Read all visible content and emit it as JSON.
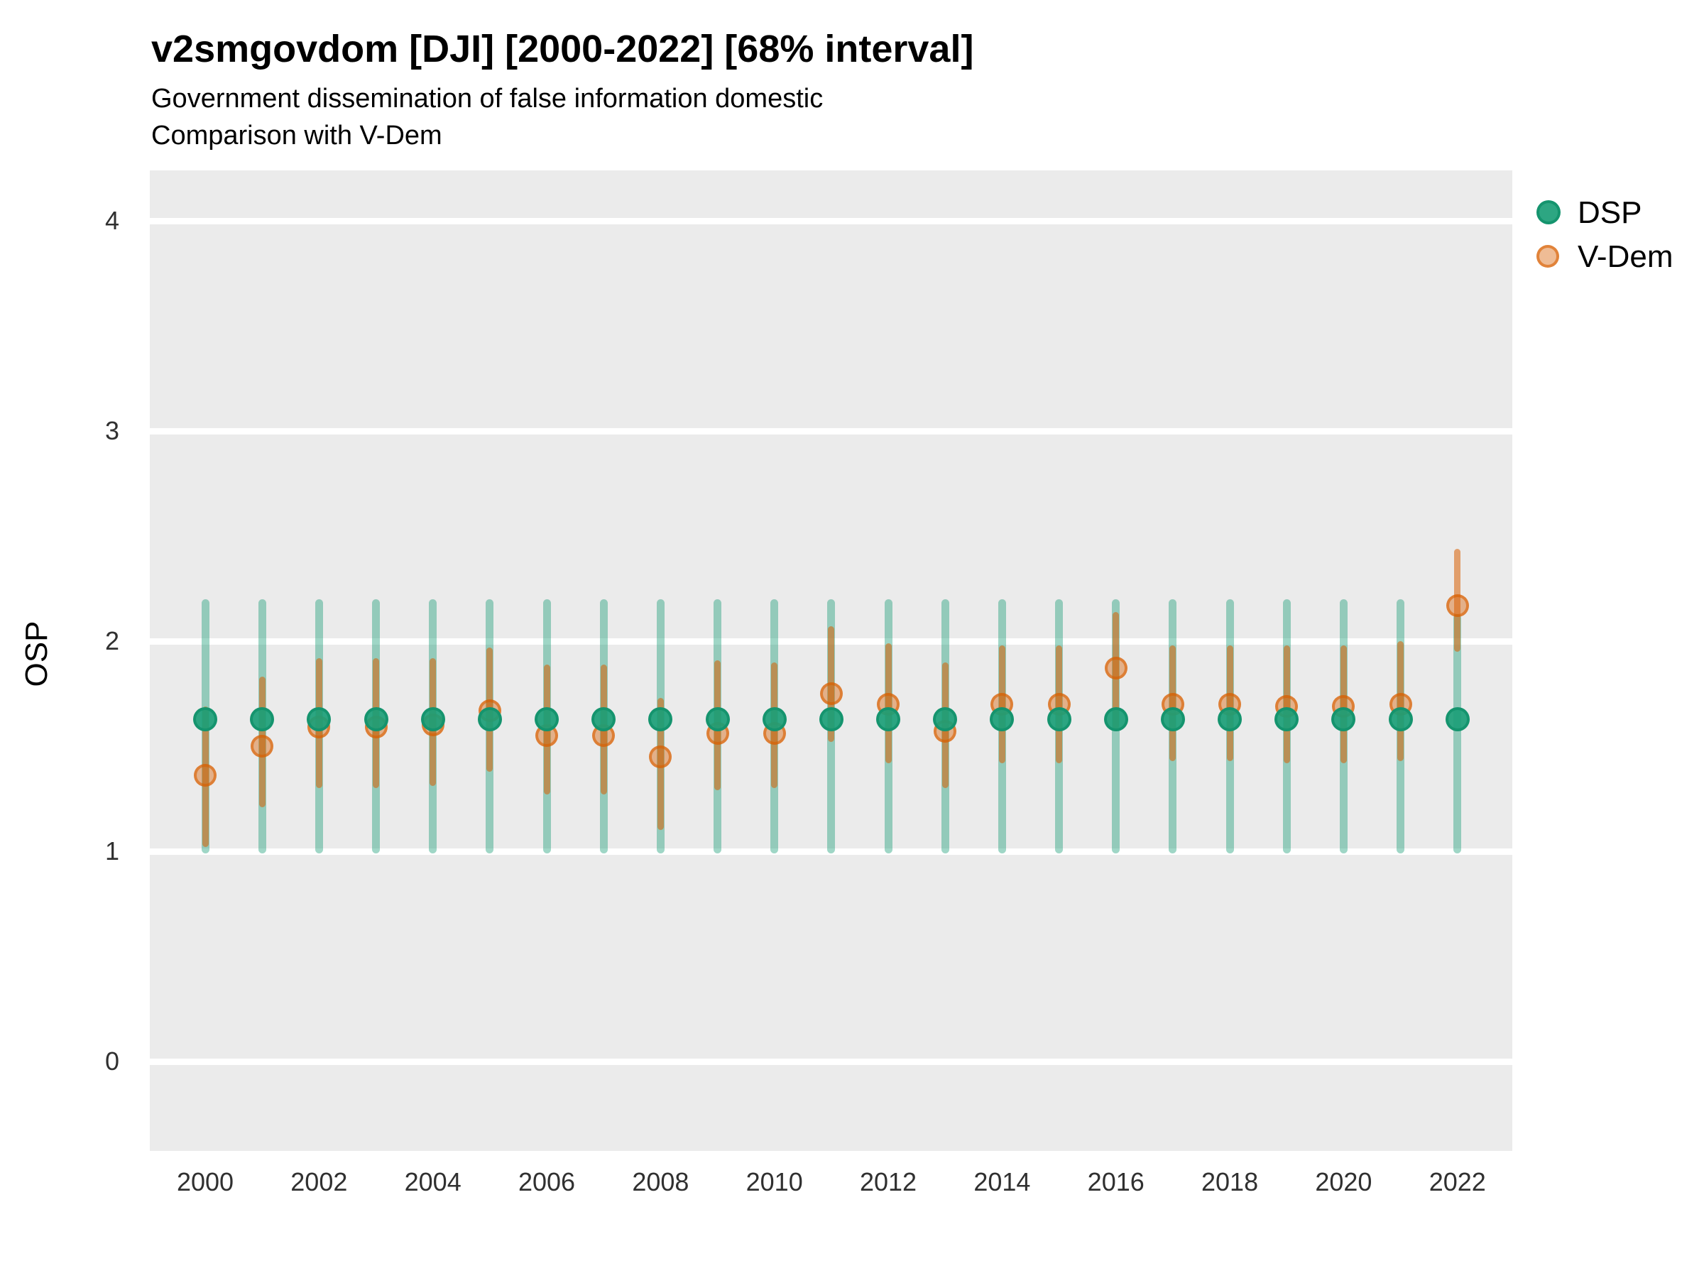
{
  "header": {
    "title": "v2smgovdom [DJI] [2000-2022] [68% interval]",
    "subtitle_line1": "Government dissemination of false information domestic",
    "subtitle_line2": "Comparison with V-Dem"
  },
  "y_axis": {
    "title": "OSP",
    "tick_labels": [
      "4",
      "3",
      "2",
      "1",
      "0"
    ],
    "tick_values": [
      4,
      3,
      2,
      1,
      0
    ]
  },
  "x_axis": {
    "tick_labels": [
      "2000",
      "2002",
      "2004",
      "2006",
      "2008",
      "2010",
      "2012",
      "2014",
      "2016",
      "2018",
      "2020",
      "2022"
    ],
    "tick_values": [
      2000,
      2002,
      2004,
      2006,
      2008,
      2010,
      2012,
      2014,
      2016,
      2018,
      2020,
      2022
    ]
  },
  "legend": {
    "items": [
      {
        "label": "DSP",
        "color": "#1b9e77"
      },
      {
        "label": "V-Dem",
        "color": "#d95f02"
      }
    ]
  },
  "colors": {
    "panel_background": "#EBEBEB",
    "gridline": "#FFFFFF",
    "dsp_green": "#1b9e77",
    "vdem_orange": "#d95f02",
    "page_background": "#FFFFFF",
    "text": "#000000"
  },
  "chart_data": {
    "type": "scatter",
    "title": "v2smgovdom [DJI] [2000-2022] [68% interval]",
    "subtitle": "Government dissemination of false information domestic — Comparison with V-Dem",
    "xlabel": "",
    "ylabel": "OSP",
    "ylim": [
      -0.42,
      4.24
    ],
    "xlim": [
      1999,
      2023
    ],
    "grid": true,
    "legend_position": "right",
    "interval_label": "68% interval",
    "x": [
      2000,
      2001,
      2002,
      2003,
      2004,
      2005,
      2006,
      2007,
      2008,
      2009,
      2010,
      2011,
      2012,
      2013,
      2014,
      2015,
      2016,
      2017,
      2018,
      2019,
      2020,
      2021,
      2022
    ],
    "series": [
      {
        "name": "DSP",
        "values": [
          1.63,
          1.63,
          1.63,
          1.63,
          1.63,
          1.63,
          1.63,
          1.63,
          1.63,
          1.63,
          1.63,
          1.63,
          1.63,
          1.63,
          1.63,
          1.63,
          1.63,
          1.63,
          1.63,
          1.63,
          1.63,
          1.63,
          1.63
        ],
        "interval_low": [
          0.99,
          0.99,
          0.99,
          0.99,
          0.99,
          0.99,
          0.99,
          0.99,
          0.99,
          0.99,
          0.99,
          0.99,
          0.99,
          0.99,
          0.99,
          0.99,
          0.99,
          0.99,
          0.99,
          0.99,
          0.99,
          0.99,
          0.99
        ],
        "interval_high": [
          2.2,
          2.2,
          2.2,
          2.2,
          2.2,
          2.2,
          2.2,
          2.2,
          2.2,
          2.2,
          2.2,
          2.2,
          2.2,
          2.2,
          2.2,
          2.2,
          2.2,
          2.2,
          2.2,
          2.2,
          2.2,
          2.2,
          2.13
        ]
      },
      {
        "name": "V-Dem",
        "values": [
          1.36,
          1.5,
          1.59,
          1.59,
          1.6,
          1.67,
          1.55,
          1.55,
          1.45,
          1.56,
          1.56,
          1.75,
          1.7,
          1.57,
          1.7,
          1.7,
          1.87,
          1.7,
          1.7,
          1.69,
          1.69,
          1.7,
          2.17
        ],
        "interval_low": [
          1.02,
          1.21,
          1.3,
          1.3,
          1.31,
          1.38,
          1.27,
          1.27,
          1.1,
          1.29,
          1.3,
          1.52,
          1.42,
          1.3,
          1.42,
          1.42,
          1.58,
          1.43,
          1.43,
          1.42,
          1.42,
          1.43,
          1.95
        ],
        "interval_high": [
          1.69,
          1.83,
          1.92,
          1.92,
          1.92,
          1.97,
          1.89,
          1.89,
          1.73,
          1.91,
          1.9,
          2.07,
          1.99,
          1.9,
          1.98,
          1.98,
          2.14,
          1.98,
          1.98,
          1.98,
          1.98,
          2.0,
          2.44
        ]
      }
    ]
  }
}
